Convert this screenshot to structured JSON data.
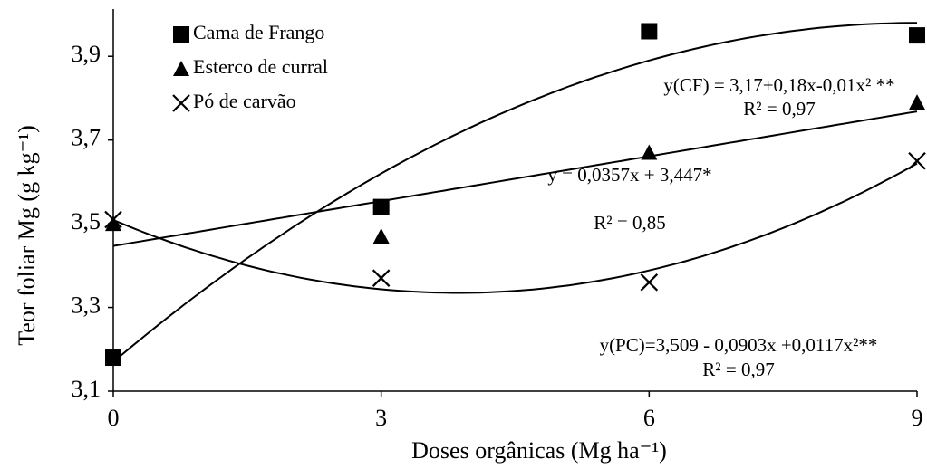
{
  "chart_data": {
    "type": "scatter",
    "x_label": "Doses orgânicas (Mg ha⁻¹)",
    "y_label": "Teor foliar Mg (g kg⁻¹)",
    "xlim": [
      0,
      9
    ],
    "xticks": [
      0,
      3,
      6,
      9
    ],
    "ylim": [
      3.1,
      4.0
    ],
    "yticks": [
      {
        "value": 3.1,
        "label": "3,1"
      },
      {
        "value": 3.3,
        "label": "3,3"
      },
      {
        "value": 3.5,
        "label": "3,5"
      },
      {
        "value": 3.7,
        "label": "3,7"
      },
      {
        "value": 3.9,
        "label": "3,9"
      }
    ],
    "grid": false,
    "legend": "top-left",
    "x": [
      0,
      3,
      6,
      9
    ],
    "series": [
      {
        "name": "Cama de Frango",
        "color": "#000000",
        "marker": "square",
        "values": [
          3.18,
          3.54,
          3.96,
          3.95
        ],
        "trendline": {
          "coefficients": [
            3.17,
            0.18,
            -0.01
          ],
          "equation": "y(CF) = 3,17+0,18x-0,01x² **",
          "r2": "R² = 0,97"
        }
      },
      {
        "name": "Esterco de curral",
        "color": "#000000",
        "marker": "triangle",
        "values": [
          3.5,
          3.47,
          3.67,
          3.79
        ],
        "trendline": {
          "coefficients": [
            3.447,
            0.0357
          ],
          "equation": "y = 0,0357x + 3,447*",
          "r2": "R² = 0,85"
        }
      },
      {
        "name": "Pó de carvão",
        "color": "#000000",
        "marker": "x",
        "values": [
          3.51,
          3.37,
          3.36,
          3.65
        ],
        "trendline": {
          "coefficients": [
            3.509,
            -0.0903,
            0.0117
          ],
          "equation": "y(PC)=3,509 - 0,0903x +0,0117x²**",
          "r2": "R² = 0,97"
        }
      }
    ]
  }
}
